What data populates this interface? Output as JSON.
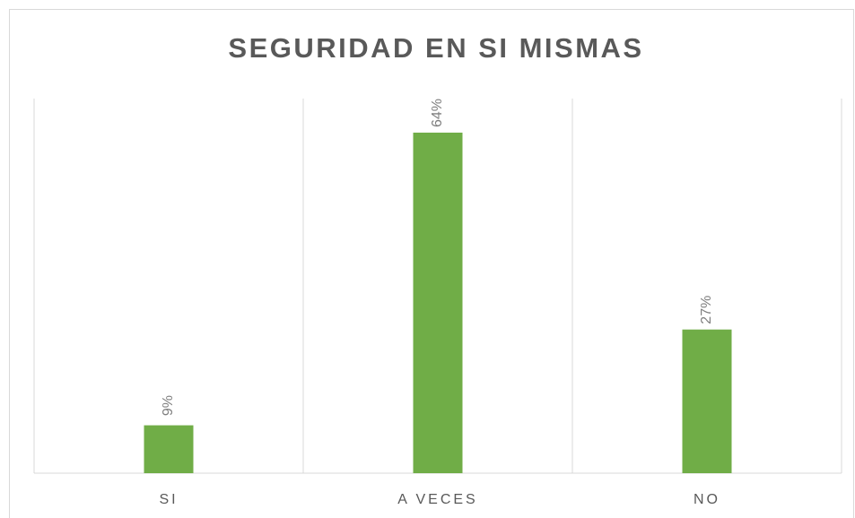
{
  "chart_data": {
    "type": "bar",
    "title": "SEGURIDAD EN SI MISMAS",
    "categories": [
      "SI",
      "A VECES",
      "NO"
    ],
    "values": [
      9,
      64,
      27
    ],
    "value_labels": [
      "9%",
      "64%",
      "27%"
    ],
    "color": "#70ad47"
  }
}
